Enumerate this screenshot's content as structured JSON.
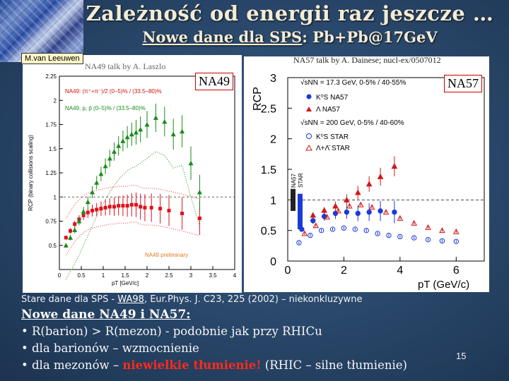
{
  "slide": {
    "title": "Zależność od  energii raz jeszcze …",
    "subtitle_underlined": "Nowe dane dla SPS",
    "subtitle_rest": ": Pb+Pb@17GeV",
    "page_number": "15"
  },
  "labels": {
    "author_tag": "M.van Leeuwen",
    "na49_talk": "NA49 talk by A. Laszlo",
    "na57_talk": "NA57 talk by A. Dainese; nucl-ex/0507012",
    "na49_box": "NA49",
    "na57_box": "NA57"
  },
  "text": {
    "old_data_prefix": "Stare dane dla SPS - ",
    "old_data_ref": "WA98",
    "old_data_suffix": ", Eur.Phys. J. C23, 225 (2002) – niekonkluzywne",
    "new_heading": "Nowe dane NA49 i NA57:",
    "bullet1": "• R(barion) > R(mezon)  - podobnie jak przy RHICu",
    "bullet2": "• dla barionów – wzmocnienie",
    "bullet3_prefix": "• dla mezonów – ",
    "bullet3_red": "niewielkie tłumienie!",
    "bullet3_suffix": "   (RHIC – silne tłumienie)"
  },
  "chart_data": [
    {
      "type": "scatter",
      "title": "NA49",
      "xlabel": "pT [GeV/c]",
      "ylabel": "RCP (binary collisions scaling)",
      "xlim": [
        0,
        4
      ],
      "ylim": [
        0.25,
        2.25
      ],
      "x_ticks": [
        "0",
        "0.5",
        "1",
        "1.5",
        "2",
        "2.5",
        "3",
        "3.5",
        "4"
      ],
      "y_ticks": [
        "0.5",
        "0.75",
        "1",
        "1.25",
        "1.5",
        "1.75",
        "2",
        "2.25"
      ],
      "legend": [
        "NA49: (π⁺+π⁻)/2   (0–5)% / (33.5–80)%",
        "NA49, p, p̄   (0–5)% / (33.5–80)%"
      ],
      "annotation": "NA49 preliminary",
      "series": [
        {
          "name": "pions",
          "color": "#e0101a",
          "x": [
            0.15,
            0.25,
            0.35,
            0.45,
            0.55,
            0.65,
            0.75,
            0.85,
            0.95,
            1.05,
            1.15,
            1.25,
            1.35,
            1.45,
            1.55,
            1.65,
            1.75,
            1.85,
            1.95,
            2.1,
            2.3,
            2.5,
            2.8,
            3.2
          ],
          "y": [
            0.58,
            0.65,
            0.72,
            0.77,
            0.81,
            0.84,
            0.86,
            0.87,
            0.88,
            0.89,
            0.9,
            0.9,
            0.91,
            0.91,
            0.91,
            0.92,
            0.92,
            0.9,
            0.89,
            0.89,
            0.88,
            0.86,
            0.83,
            0.78
          ]
        },
        {
          "name": "protons",
          "color": "#1a8a1a",
          "x": [
            0.15,
            0.25,
            0.35,
            0.45,
            0.55,
            0.65,
            0.75,
            0.85,
            0.95,
            1.05,
            1.15,
            1.25,
            1.35,
            1.45,
            1.55,
            1.65,
            1.75,
            1.85,
            2.0,
            2.2,
            2.4,
            2.6,
            2.8,
            3.0,
            3.2
          ],
          "y": [
            0.5,
            0.58,
            0.66,
            0.75,
            0.85,
            0.95,
            1.05,
            1.15,
            1.24,
            1.32,
            1.4,
            1.47,
            1.53,
            1.58,
            1.62,
            1.65,
            1.67,
            1.7,
            1.75,
            1.82,
            1.78,
            1.65,
            1.68,
            1.35,
            1.05
          ]
        }
      ]
    },
    {
      "type": "scatter",
      "title": "NA57",
      "xlabel": "pT (GeV/c)",
      "ylabel": "RCP",
      "xlim": [
        0,
        7
      ],
      "ylim": [
        0,
        3
      ],
      "x_ticks": [
        "0",
        "2",
        "4",
        "6"
      ],
      "y_ticks": [
        "0",
        "0.5",
        "1",
        "1.5",
        "2",
        "2.5",
        "3"
      ],
      "legend_header_sps": "√sNN = 17.3 GeV, 0-5% / 40-55%",
      "legend_header_rhic": "√sNN = 200 GeV, 0-5% / 40-60%",
      "legend": [
        "K⁰S NA57",
        "Λ NA57",
        "K⁰S STAR",
        "Λ+Λ̄ STAR"
      ],
      "band_labels": [
        "NA57",
        "STAR"
      ],
      "series": [
        {
          "name": "K0S NA57",
          "color": "#1a3ad8",
          "filled": true,
          "x": [
            0.5,
            0.9,
            1.3,
            1.7,
            2.1,
            2.5,
            2.9,
            3.3,
            3.8
          ],
          "y": [
            0.52,
            0.66,
            0.73,
            0.78,
            0.8,
            0.78,
            0.8,
            0.82,
            0.8
          ]
        },
        {
          "name": "Lambda NA57",
          "color": "#d01818",
          "filled": true,
          "x": [
            0.9,
            1.3,
            1.7,
            2.1,
            2.5,
            2.9,
            3.3,
            3.8
          ],
          "y": [
            0.75,
            0.83,
            0.9,
            1.0,
            1.12,
            1.26,
            1.38,
            1.55
          ]
        },
        {
          "name": "K0S STAR",
          "color": "#1a3ad8",
          "filled": false,
          "x": [
            0.4,
            0.8,
            1.2,
            1.6,
            2.0,
            2.4,
            2.8,
            3.2,
            3.6,
            4.0,
            4.5,
            5.0,
            5.5,
            6.0
          ],
          "y": [
            0.3,
            0.42,
            0.5,
            0.52,
            0.54,
            0.52,
            0.5,
            0.45,
            0.42,
            0.4,
            0.38,
            0.35,
            0.33,
            0.32
          ]
        },
        {
          "name": "Lambda+Lambdabar STAR",
          "color": "#d01818",
          "filled": false,
          "x": [
            0.6,
            1.0,
            1.4,
            1.8,
            2.2,
            2.6,
            3.0,
            3.5,
            4.0,
            4.5,
            5.0,
            5.5,
            6.0
          ],
          "y": [
            0.45,
            0.58,
            0.72,
            0.82,
            0.9,
            0.92,
            0.88,
            0.8,
            0.7,
            0.62,
            0.55,
            0.5,
            0.48
          ]
        }
      ]
    }
  ]
}
